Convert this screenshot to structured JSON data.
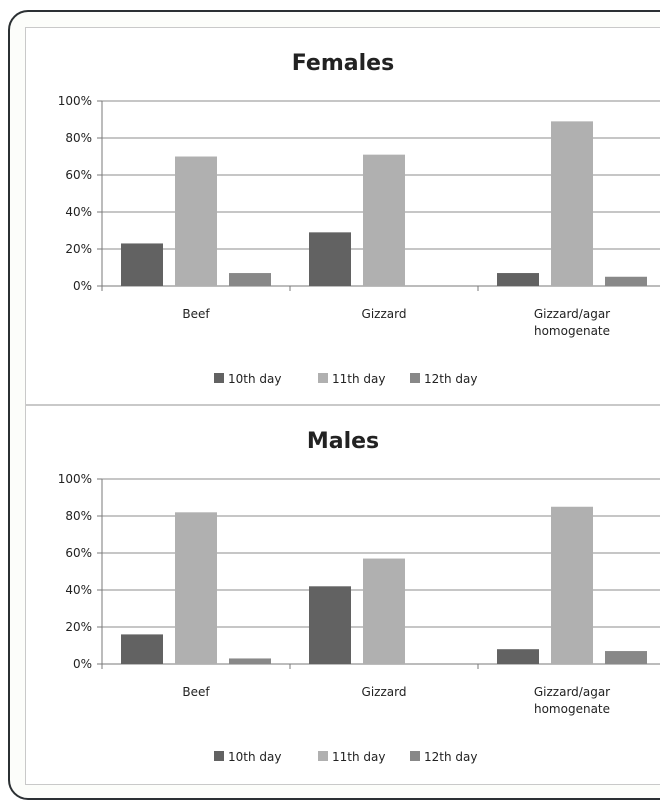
{
  "chart_data": [
    {
      "type": "bar",
      "title": "Females",
      "categories": [
        "Beef",
        "Gizzard",
        "Gizzard/agar homogenate"
      ],
      "category_lines": [
        [
          "Beef"
        ],
        [
          "Gizzard"
        ],
        [
          "Gizzard/agar",
          "homogenate"
        ]
      ],
      "series": [
        {
          "name": "10th day",
          "values": [
            23,
            29,
            7
          ],
          "color": "#626262"
        },
        {
          "name": "11th day",
          "values": [
            70,
            71,
            89
          ],
          "color": "#b0b0b0"
        },
        {
          "name": "12th day",
          "values": [
            7,
            0,
            5
          ],
          "color": "#888888"
        }
      ],
      "ylim": [
        0,
        100
      ],
      "yticks": [
        0,
        20,
        40,
        60,
        80,
        100
      ],
      "ytick_labels": [
        "0%",
        "20%",
        "40%",
        "60%",
        "80%",
        "100%"
      ],
      "grid": true,
      "legend": "bottom"
    },
    {
      "type": "bar",
      "title": "Males",
      "categories": [
        "Beef",
        "Gizzard",
        "Gizzard/agar homogenate"
      ],
      "category_lines": [
        [
          "Beef"
        ],
        [
          "Gizzard"
        ],
        [
          "Gizzard/agar",
          "homogenate"
        ]
      ],
      "series": [
        {
          "name": "10th day",
          "values": [
            16,
            42,
            8
          ],
          "color": "#626262"
        },
        {
          "name": "11th day",
          "values": [
            82,
            57,
            85
          ],
          "color": "#b0b0b0"
        },
        {
          "name": "12th day",
          "values": [
            3,
            0,
            7
          ],
          "color": "#888888"
        }
      ],
      "ylim": [
        0,
        100
      ],
      "yticks": [
        0,
        20,
        40,
        60,
        80,
        100
      ],
      "ytick_labels": [
        "0%",
        "20%",
        "40%",
        "60%",
        "80%",
        "100%"
      ],
      "grid": true,
      "legend": "bottom"
    }
  ]
}
